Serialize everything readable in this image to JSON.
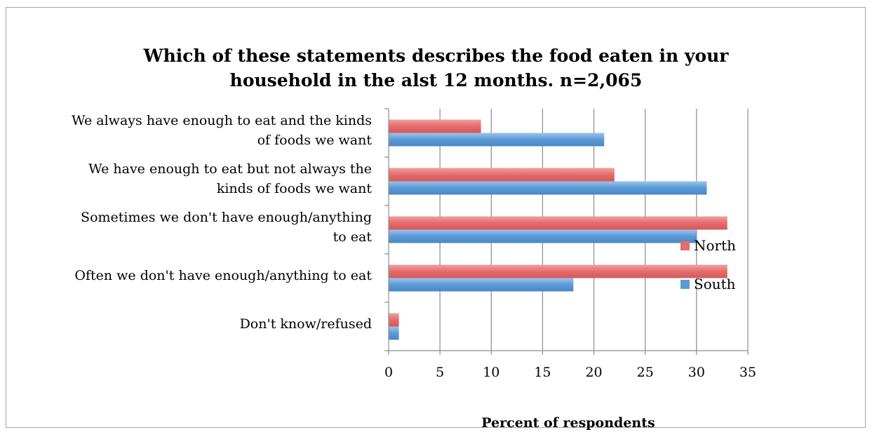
{
  "chart_data": {
    "type": "bar",
    "orientation": "horizontal",
    "title": "Which of these statements describes the food eaten in your\nhousehold in the alst 12 months. n=2,065",
    "xlabel": "Percent of respondents",
    "ylabel": "",
    "xlim": [
      0,
      35
    ],
    "xticks": [
      "0",
      "5",
      "10",
      "15",
      "20",
      "25",
      "30",
      "35"
    ],
    "grid": "vertical",
    "legend": "right",
    "categories": [
      "We always have enough to eat and the kinds\nof foods we want",
      "We have enough to eat but not always the\nkinds of foods we want",
      "Sometimes we don't have enough/anything\nto eat",
      "Often we don't have enough/anything to eat",
      "Don't know/refused"
    ],
    "series": [
      {
        "name": "North",
        "color": "#e46c6c",
        "values": [
          9,
          22,
          33,
          33,
          1
        ]
      },
      {
        "name": "South",
        "color": "#5b9bd5",
        "values": [
          21,
          31,
          30,
          18,
          1
        ]
      }
    ]
  }
}
